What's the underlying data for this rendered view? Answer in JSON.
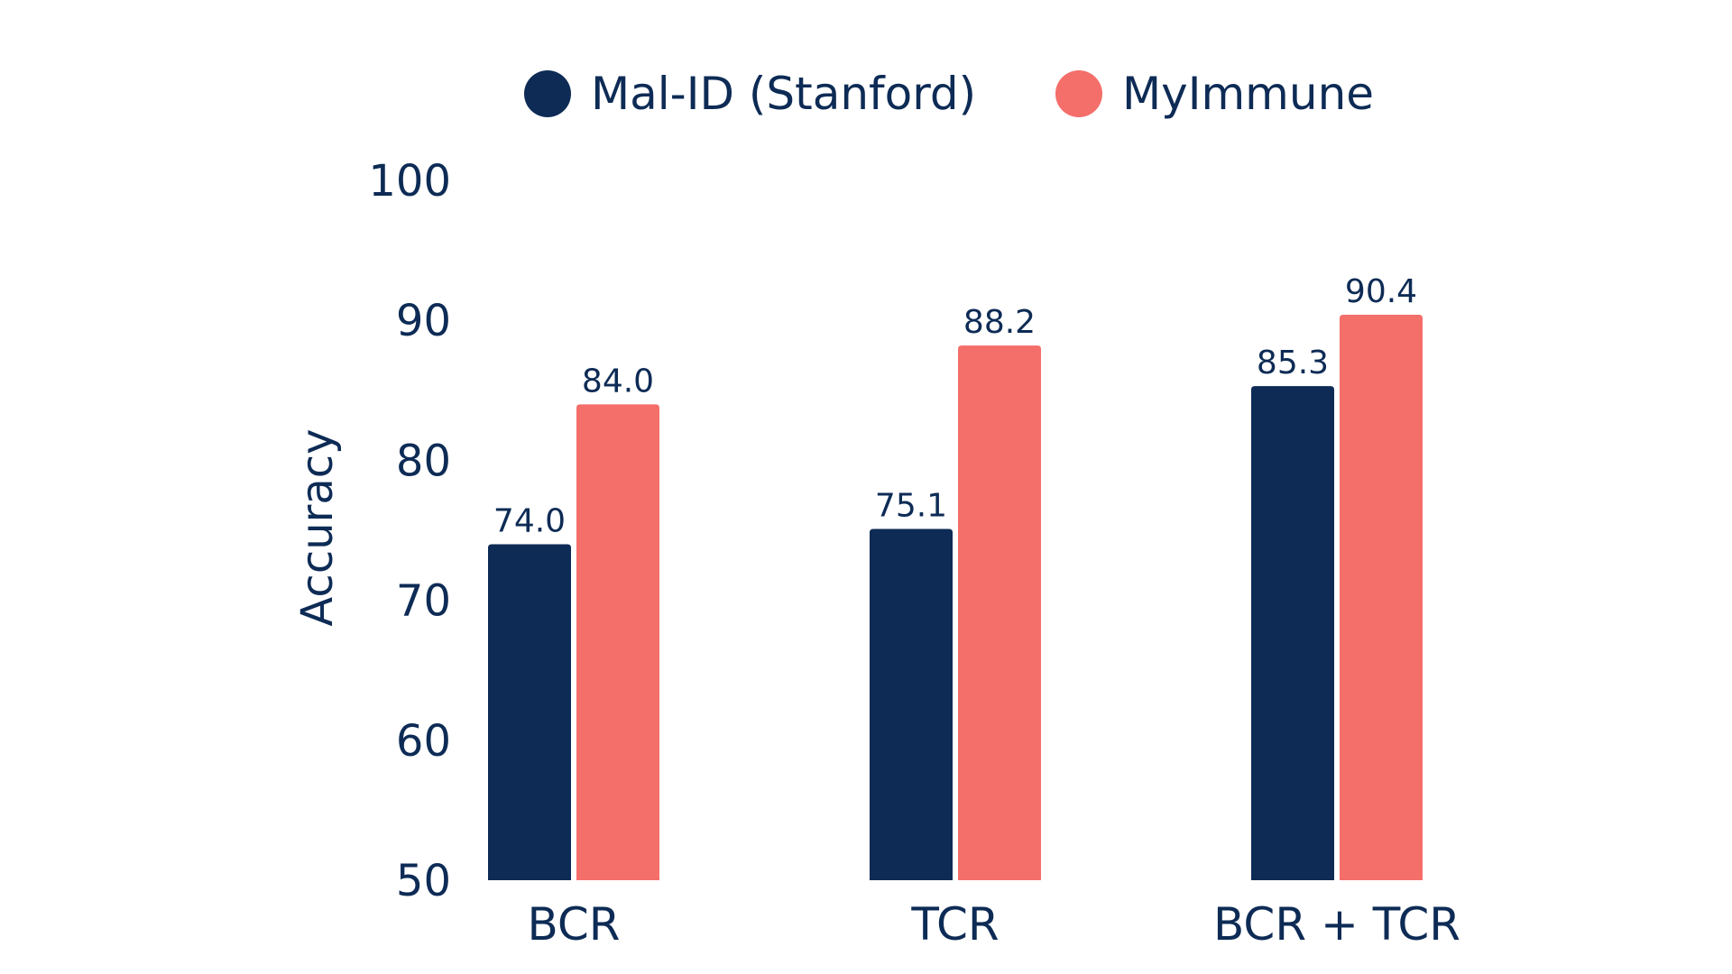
{
  "chart_data": {
    "type": "bar",
    "title": "",
    "xlabel": "",
    "ylabel": "Accuracy",
    "ylim": [
      50,
      100
    ],
    "yticks": [
      50,
      60,
      70,
      80,
      90,
      100
    ],
    "grid": false,
    "legend": "top-center",
    "categories": [
      "BCR",
      "TCR",
      "BCR + TCR"
    ],
    "series": [
      {
        "name": "Mal-ID (Stanford)",
        "color": "#0d2b55",
        "values": [
          74.0,
          75.1,
          85.3
        ],
        "labels": [
          "74.0",
          "75.1",
          "85.3"
        ]
      },
      {
        "name": "MyImmune",
        "color": "#f46e6a",
        "values": [
          84.0,
          88.2,
          90.4
        ],
        "labels": [
          "84.0",
          "88.2",
          "90.4"
        ]
      }
    ]
  }
}
